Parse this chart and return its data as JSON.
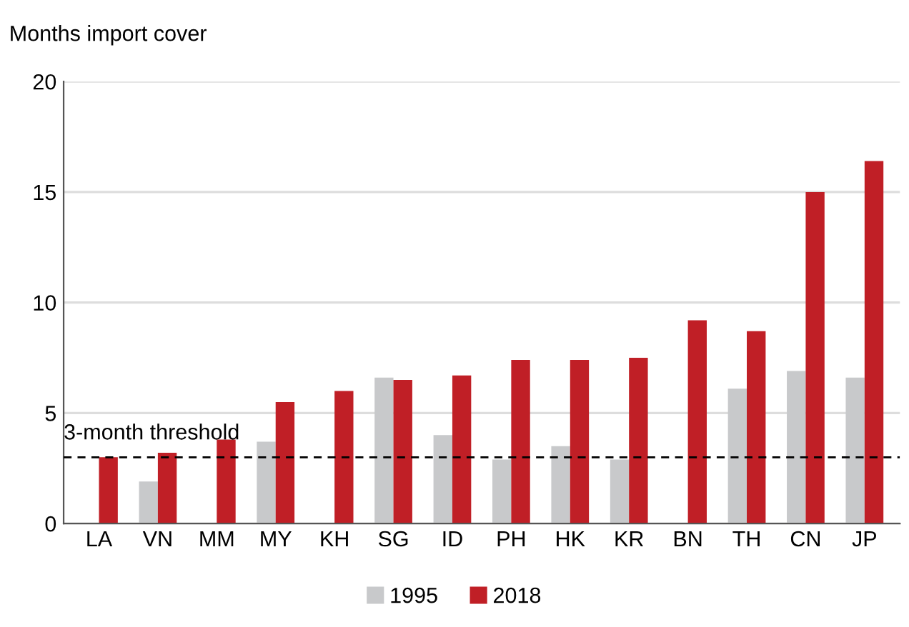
{
  "chart_data": {
    "type": "bar",
    "ylabel": "Months import cover",
    "categories": [
      "LA",
      "VN",
      "MM",
      "MY",
      "KH",
      "SG",
      "ID",
      "PH",
      "HK",
      "KR",
      "BN",
      "TH",
      "CN",
      "JP"
    ],
    "series": [
      {
        "name": "1995",
        "color": "#c8c9cb",
        "values": [
          null,
          1.9,
          null,
          3.7,
          null,
          6.6,
          4.0,
          2.9,
          3.5,
          2.9,
          null,
          6.1,
          6.9,
          6.6
        ]
      },
      {
        "name": "2018",
        "color": "#c01f26",
        "values": [
          3.0,
          3.2,
          3.8,
          5.5,
          6.0,
          6.5,
          6.7,
          7.4,
          7.4,
          7.5,
          9.2,
          8.7,
          15.0,
          16.4
        ]
      }
    ],
    "ylim": [
      0,
      20
    ],
    "yticks": [
      0,
      5,
      10,
      15,
      20
    ],
    "grid": "y",
    "legend": "bottom",
    "ref_lines": [
      {
        "axis": "y",
        "value": 3,
        "label": "3-month threshold",
        "color": "#000000",
        "line_style": "dashed"
      }
    ]
  }
}
